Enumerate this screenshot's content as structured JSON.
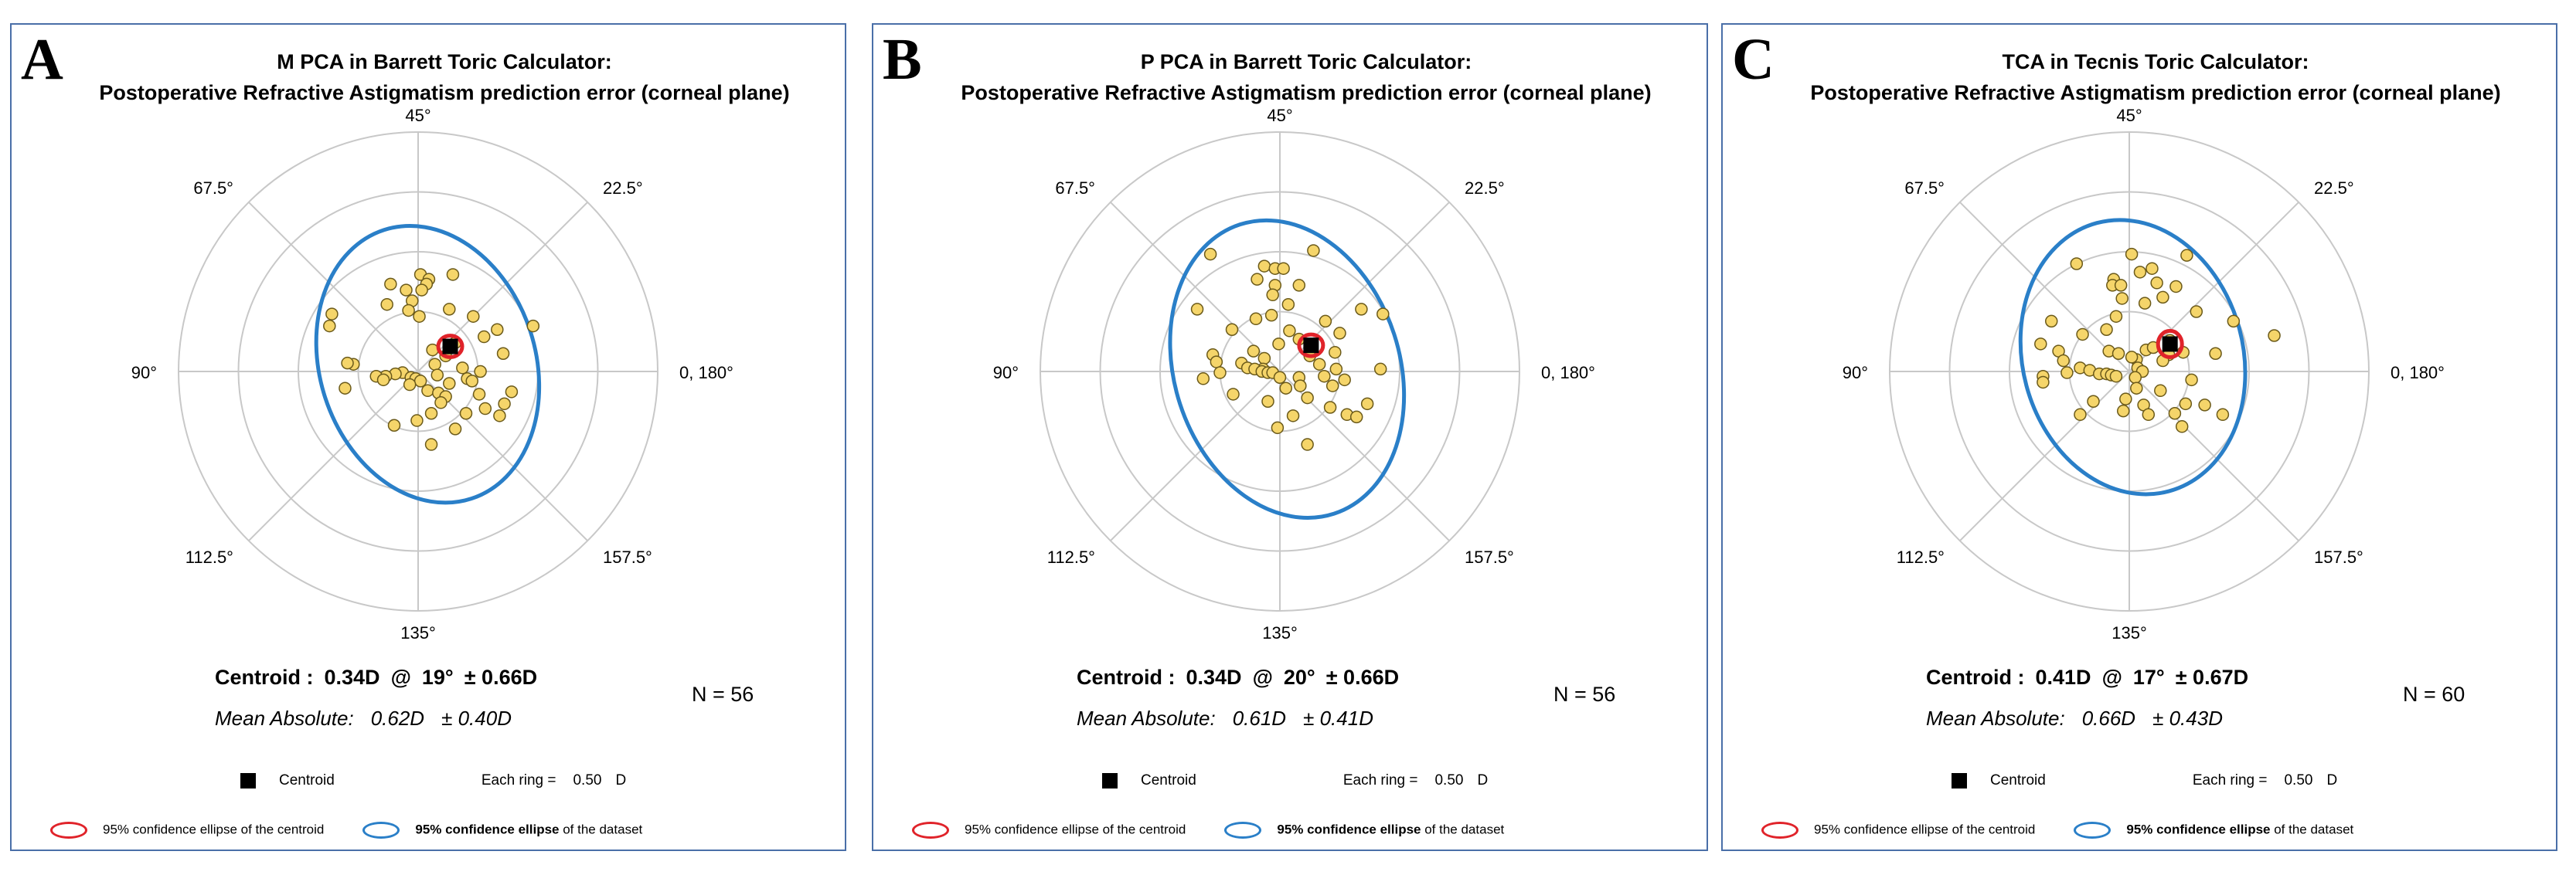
{
  "colors": {
    "border": "#4a6fa8",
    "dot_fill": "#f5d56a",
    "dot_stroke": "#6b5a1a",
    "centroid_ellipse": "#e0232a",
    "dataset_ellipse": "#2a7fc8",
    "grid": "#c8c8c8"
  },
  "axis_labels": {
    "a45": "45°",
    "a22": "22.5°",
    "a0": "0, 180°",
    "a157": "157.5°",
    "a135": "135°",
    "a112": "112.5°",
    "a90": "90°",
    "a67": "67.5°"
  },
  "legend": {
    "centroid_label": "Centroid",
    "ring_label": "Each ring =",
    "ring_value": "0.50",
    "ring_unit": "D",
    "red_ellipse_label": "95% confidence ellipse of  the centroid",
    "blue_ellipse_bold": "95% confidence ellipse",
    "blue_ellipse_rest": " of the dataset"
  },
  "chart_data": [
    {
      "type": "scatter",
      "panel_letter": "A",
      "title_line1": "M PCA in Barrett Toric Calculator:",
      "title_line2": "Postoperative Refractive Astigmatism prediction error (corneal plane)",
      "centroid_label": "Centroid :",
      "centroid_magnitude": "0.34D",
      "at": "@",
      "centroid_axis": "19°",
      "centroid_sd": "± 0.66D",
      "mean_label": "Mean Absolute:",
      "mean_value": "0.62D",
      "mean_sd": "± 0.40D",
      "n_label": "N = 56",
      "ring_step_D": 0.5,
      "rings": 4,
      "centroid": [
        0.34,
        19
      ],
      "centroid_ellipse": {
        "rx": 0.1,
        "ry": 0.09,
        "rotation": 0
      },
      "dataset_ellipse": {
        "cx": 0.08,
        "cy": 0.06,
        "rx": 0.9,
        "ry": 1.18,
        "rotation": -18
      },
      "points": [
        [
          0.29,
          0.81
        ],
        [
          0.02,
          0.81
        ],
        [
          0.09,
          0.77
        ],
        [
          -0.23,
          0.73
        ],
        [
          0.07,
          0.73
        ],
        [
          0.03,
          0.68
        ],
        [
          -0.1,
          0.68
        ],
        [
          -0.26,
          0.56
        ],
        [
          -0.05,
          0.59
        ],
        [
          0.26,
          0.52
        ],
        [
          -0.08,
          0.51
        ],
        [
          0.01,
          0.46
        ],
        [
          0.46,
          0.46
        ],
        [
          -0.72,
          0.48
        ],
        [
          -0.74,
          0.38
        ],
        [
          0.66,
          0.35
        ],
        [
          0.55,
          0.29
        ],
        [
          0.96,
          0.38
        ],
        [
          0.31,
          0.24
        ],
        [
          0.71,
          0.15
        ],
        [
          0.12,
          0.18
        ],
        [
          0.14,
          0.06
        ],
        [
          0.23,
          0.13
        ],
        [
          -0.54,
          0.06
        ],
        [
          -0.59,
          0.07
        ],
        [
          0.37,
          0.03
        ],
        [
          0.52,
          -0.0
        ],
        [
          0.16,
          -0.03
        ],
        [
          0.41,
          -0.06
        ],
        [
          -0.13,
          -0.01
        ],
        [
          -0.19,
          -0.02
        ],
        [
          -0.27,
          -0.04
        ],
        [
          -0.06,
          -0.05
        ],
        [
          -0.02,
          -0.06
        ],
        [
          -0.35,
          -0.04
        ],
        [
          -0.29,
          -0.07
        ],
        [
          0.02,
          -0.08
        ],
        [
          -0.07,
          -0.11
        ],
        [
          0.08,
          -0.16
        ],
        [
          0.26,
          -0.1
        ],
        [
          0.17,
          -0.18
        ],
        [
          0.23,
          -0.21
        ],
        [
          0.51,
          -0.19
        ],
        [
          0.72,
          -0.27
        ],
        [
          0.56,
          -0.31
        ],
        [
          0.4,
          -0.35
        ],
        [
          0.68,
          -0.37
        ],
        [
          0.11,
          -0.35
        ],
        [
          0.31,
          -0.48
        ],
        [
          -0.61,
          -0.14
        ],
        [
          -0.01,
          -0.41
        ],
        [
          -0.2,
          -0.45
        ],
        [
          0.11,
          -0.61
        ],
        [
          0.78,
          -0.17
        ],
        [
          0.45,
          -0.08
        ],
        [
          0.19,
          -0.26
        ]
      ]
    },
    {
      "type": "scatter",
      "panel_letter": "B",
      "title_line1": "P PCA in Barrett Toric Calculator:",
      "title_line2": "Postoperative Refractive Astigmatism prediction error (corneal plane)",
      "centroid_label": "Centroid :",
      "centroid_magnitude": "0.34D",
      "at": "@",
      "centroid_axis": "20°",
      "centroid_sd": "± 0.66D",
      "mean_label": "Mean Absolute:",
      "mean_value": "0.61D",
      "mean_sd": "± 0.41D",
      "n_label": "N = 56",
      "ring_step_D": 0.5,
      "rings": 4,
      "centroid": [
        0.34,
        20
      ],
      "centroid_ellipse": {
        "rx": 0.1,
        "ry": 0.09,
        "rotation": 0
      },
      "dataset_ellipse": {
        "cx": 0.06,
        "cy": 0.02,
        "rx": 0.94,
        "ry": 1.27,
        "rotation": -18
      },
      "points": [
        [
          -0.58,
          0.98
        ],
        [
          0.28,
          1.01
        ],
        [
          -0.13,
          0.88
        ],
        [
          -0.04,
          0.86
        ],
        [
          0.03,
          0.86
        ],
        [
          -0.19,
          0.77
        ],
        [
          -0.04,
          0.72
        ],
        [
          -0.06,
          0.64
        ],
        [
          0.16,
          0.72
        ],
        [
          0.07,
          0.56
        ],
        [
          -0.2,
          0.44
        ],
        [
          -0.07,
          0.47
        ],
        [
          -0.69,
          0.52
        ],
        [
          0.68,
          0.52
        ],
        [
          0.86,
          0.48
        ],
        [
          0.38,
          0.42
        ],
        [
          0.08,
          0.34
        ],
        [
          0.5,
          0.32
        ],
        [
          0.16,
          0.27
        ],
        [
          -0.4,
          0.35
        ],
        [
          -0.01,
          0.23
        ],
        [
          0.25,
          0.13
        ],
        [
          -0.22,
          0.17
        ],
        [
          -0.56,
          0.14
        ],
        [
          -0.13,
          0.11
        ],
        [
          0.46,
          0.16
        ],
        [
          -0.53,
          0.08
        ],
        [
          -0.14,
          0.02
        ],
        [
          -0.32,
          0.07
        ],
        [
          0.33,
          0.06
        ],
        [
          -0.27,
          0.03
        ],
        [
          -0.21,
          0.02
        ],
        [
          -0.15,
          0.0
        ],
        [
          -0.1,
          -0.01
        ],
        [
          -0.06,
          -0.01
        ],
        [
          -0.0,
          -0.05
        ],
        [
          0.16,
          -0.05
        ],
        [
          0.37,
          -0.04
        ],
        [
          0.47,
          0.02
        ],
        [
          0.84,
          0.02
        ],
        [
          -0.64,
          -0.06
        ],
        [
          0.54,
          -0.07
        ],
        [
          0.17,
          -0.12
        ],
        [
          0.44,
          -0.12
        ],
        [
          0.05,
          -0.14
        ],
        [
          -0.39,
          -0.19
        ],
        [
          0.23,
          -0.22
        ],
        [
          -0.1,
          -0.25
        ],
        [
          0.42,
          -0.3
        ],
        [
          0.56,
          -0.36
        ],
        [
          0.11,
          -0.37
        ],
        [
          0.64,
          -0.38
        ],
        [
          -0.02,
          -0.47
        ],
        [
          0.23,
          -0.61
        ],
        [
          0.73,
          -0.27
        ],
        [
          -0.5,
          -0.01
        ]
      ]
    },
    {
      "type": "scatter",
      "panel_letter": "C",
      "title_line1": "TCA in Tecnis Toric Calculator:",
      "title_line2": "Postoperative Refractive Astigmatism prediction error (corneal plane)",
      "centroid_label": "Centroid :",
      "centroid_magnitude": "0.41D",
      "at": "@",
      "centroid_axis": "17°",
      "centroid_sd": "± 0.67D",
      "mean_label": "Mean Absolute:",
      "mean_value": "0.66D",
      "mean_sd": "± 0.43D",
      "n_label": "N = 60",
      "ring_step_D": 0.5,
      "rings": 4,
      "centroid": [
        0.41,
        17
      ],
      "centroid_ellipse": {
        "rx": 0.1,
        "ry": 0.11,
        "rotation": 0
      },
      "dataset_ellipse": {
        "cx": 0.03,
        "cy": 0.12,
        "rx": 0.92,
        "ry": 1.16,
        "rotation": -15
      },
      "points": [
        [
          0.02,
          0.98
        ],
        [
          -0.44,
          0.9
        ],
        [
          0.48,
          0.97
        ],
        [
          0.19,
          0.86
        ],
        [
          -0.13,
          0.77
        ],
        [
          0.09,
          0.83
        ],
        [
          0.23,
          0.74
        ],
        [
          -0.14,
          0.72
        ],
        [
          -0.07,
          0.72
        ],
        [
          0.39,
          0.71
        ],
        [
          -0.06,
          0.61
        ],
        [
          0.28,
          0.62
        ],
        [
          0.13,
          0.57
        ],
        [
          -0.11,
          0.46
        ],
        [
          0.56,
          0.5
        ],
        [
          -0.65,
          0.42
        ],
        [
          0.87,
          0.42
        ],
        [
          1.21,
          0.3
        ],
        [
          -0.19,
          0.35
        ],
        [
          -0.39,
          0.31
        ],
        [
          -0.74,
          0.23
        ],
        [
          0.34,
          0.26
        ],
        [
          -0.17,
          0.17
        ],
        [
          0.14,
          0.18
        ],
        [
          0.72,
          0.15
        ],
        [
          -0.59,
          0.17
        ],
        [
          0.33,
          0.14
        ],
        [
          0.28,
          0.09
        ],
        [
          -0.55,
          0.09
        ],
        [
          -0.09,
          0.15
        ],
        [
          0.06,
          0.1
        ],
        [
          0.07,
          0.03
        ],
        [
          0.45,
          0.16
        ],
        [
          -0.41,
          0.03
        ],
        [
          -0.33,
          0.01
        ],
        [
          0.11,
          0.0
        ],
        [
          -0.52,
          -0.01
        ],
        [
          -0.25,
          -0.02
        ],
        [
          -0.19,
          -0.02
        ],
        [
          -0.15,
          -0.03
        ],
        [
          -0.11,
          -0.04
        ],
        [
          -0.72,
          -0.04
        ],
        [
          0.05,
          -0.05
        ],
        [
          -0.72,
          -0.09
        ],
        [
          0.06,
          -0.14
        ],
        [
          0.52,
          -0.07
        ],
        [
          -0.03,
          -0.23
        ],
        [
          0.26,
          -0.16
        ],
        [
          0.12,
          -0.28
        ],
        [
          0.47,
          -0.27
        ],
        [
          0.63,
          -0.28
        ],
        [
          0.38,
          -0.35
        ],
        [
          -0.41,
          -0.36
        ],
        [
          0.16,
          -0.36
        ],
        [
          0.78,
          -0.36
        ],
        [
          0.44,
          -0.46
        ],
        [
          -0.05,
          -0.33
        ],
        [
          -0.3,
          -0.25
        ],
        [
          0.02,
          0.12
        ],
        [
          0.2,
          0.2
        ]
      ]
    }
  ]
}
